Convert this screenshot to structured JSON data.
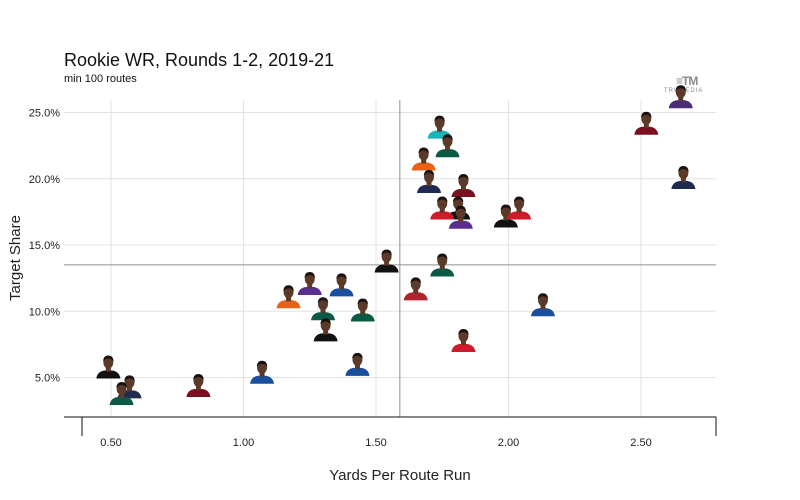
{
  "chart_data": {
    "type": "scatter",
    "title": "Rookie WR, Rounds 1-2, 2019-21",
    "subtitle": "min 100 routes",
    "xlabel": "Yards Per Route Run",
    "ylabel": "Target Share",
    "xlim": [
      0.4,
      2.8
    ],
    "ylim": [
      2.5,
      27
    ],
    "x_ticks": [
      0.5,
      1.0,
      1.5,
      2.0,
      2.5
    ],
    "x_tick_labels": [
      "0.50",
      "1.00",
      "1.50",
      "2.00",
      "2.50"
    ],
    "y_ticks": [
      5,
      10,
      15,
      20,
      25
    ],
    "y_tick_labels": [
      "5.0%",
      "10.0%",
      "15.0%",
      "20.0%",
      "25.0%"
    ],
    "grid": true,
    "reference_lines": {
      "x": 1.59,
      "y": 13.5
    },
    "points": [
      {
        "x": 0.49,
        "y": 5.0,
        "color": "#111111"
      },
      {
        "x": 0.57,
        "y": 3.5,
        "color": "#1f2c4f"
      },
      {
        "x": 0.54,
        "y": 3.0,
        "color": "#0b5a46"
      },
      {
        "x": 0.83,
        "y": 3.6,
        "color": "#7a1020"
      },
      {
        "x": 1.07,
        "y": 4.6,
        "color": "#1a4fa0"
      },
      {
        "x": 1.17,
        "y": 10.3,
        "color": "#e9621a"
      },
      {
        "x": 1.25,
        "y": 11.3,
        "color": "#5a2d91"
      },
      {
        "x": 1.37,
        "y": 11.2,
        "color": "#1a4fa0"
      },
      {
        "x": 1.3,
        "y": 9.4,
        "color": "#0b5a46"
      },
      {
        "x": 1.31,
        "y": 7.8,
        "color": "#111111"
      },
      {
        "x": 1.45,
        "y": 9.3,
        "color": "#0b5a46"
      },
      {
        "x": 1.43,
        "y": 5.2,
        "color": "#1a4fa0"
      },
      {
        "x": 1.54,
        "y": 13.0,
        "color": "#111111"
      },
      {
        "x": 1.65,
        "y": 10.9,
        "color": "#b3232d"
      },
      {
        "x": 1.75,
        "y": 12.7,
        "color": "#0b5a46"
      },
      {
        "x": 1.83,
        "y": 7.0,
        "color": "#d01a2b"
      },
      {
        "x": 1.74,
        "y": 23.1,
        "color": "#1ab3b8"
      },
      {
        "x": 1.77,
        "y": 21.7,
        "color": "#0b5a46"
      },
      {
        "x": 1.68,
        "y": 20.7,
        "color": "#e9621a"
      },
      {
        "x": 1.7,
        "y": 19.0,
        "color": "#1f2c4f"
      },
      {
        "x": 1.83,
        "y": 18.7,
        "color": "#7a1020"
      },
      {
        "x": 1.81,
        "y": 17.0,
        "color": "#111111"
      },
      {
        "x": 1.75,
        "y": 17.0,
        "color": "#d01a2b"
      },
      {
        "x": 1.82,
        "y": 16.3,
        "color": "#5a2d91"
      },
      {
        "x": 1.99,
        "y": 16.4,
        "color": "#111111"
      },
      {
        "x": 2.04,
        "y": 17.0,
        "color": "#d01a2b"
      },
      {
        "x": 2.13,
        "y": 9.7,
        "color": "#1a4fa0"
      },
      {
        "x": 2.52,
        "y": 23.4,
        "color": "#7a1020"
      },
      {
        "x": 2.65,
        "y": 25.4,
        "color": "#4b2c7a"
      },
      {
        "x": 2.66,
        "y": 19.3,
        "color": "#1f2c4f"
      }
    ]
  },
  "brand": {
    "mark": "≡TM",
    "text": "TRUMEDIA"
  }
}
